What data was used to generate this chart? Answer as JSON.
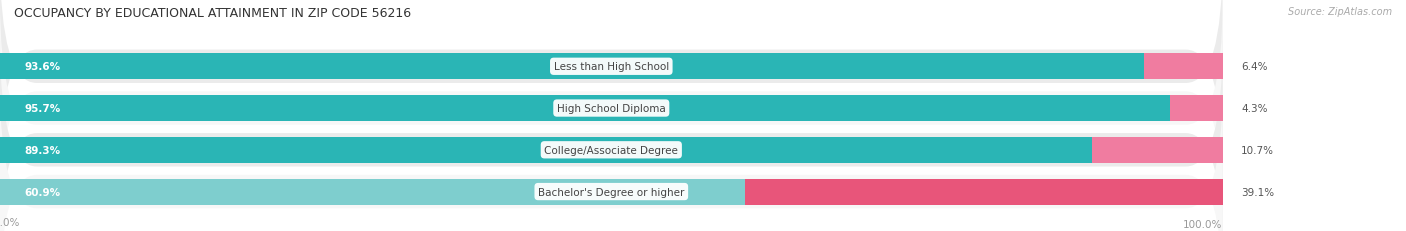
{
  "title": "OCCUPANCY BY EDUCATIONAL ATTAINMENT IN ZIP CODE 56216",
  "source": "Source: ZipAtlas.com",
  "categories": [
    "Less than High School",
    "High School Diploma",
    "College/Associate Degree",
    "Bachelor's Degree or higher"
  ],
  "owner_pct": [
    93.6,
    95.7,
    89.3,
    60.9
  ],
  "renter_pct": [
    6.4,
    4.3,
    10.7,
    39.1
  ],
  "owner_color": "#2ab5b5",
  "owner_color_light": "#7ecece",
  "renter_color": "#f07ca0",
  "renter_color_dark": "#e8557a",
  "row_bg_color_odd": "#ebebeb",
  "row_bg_color_even": "#f7f7f7",
  "label_color": "#555555",
  "title_color": "#333333",
  "axis_label_color": "#999999",
  "figsize": [
    14.06,
    2.32
  ]
}
